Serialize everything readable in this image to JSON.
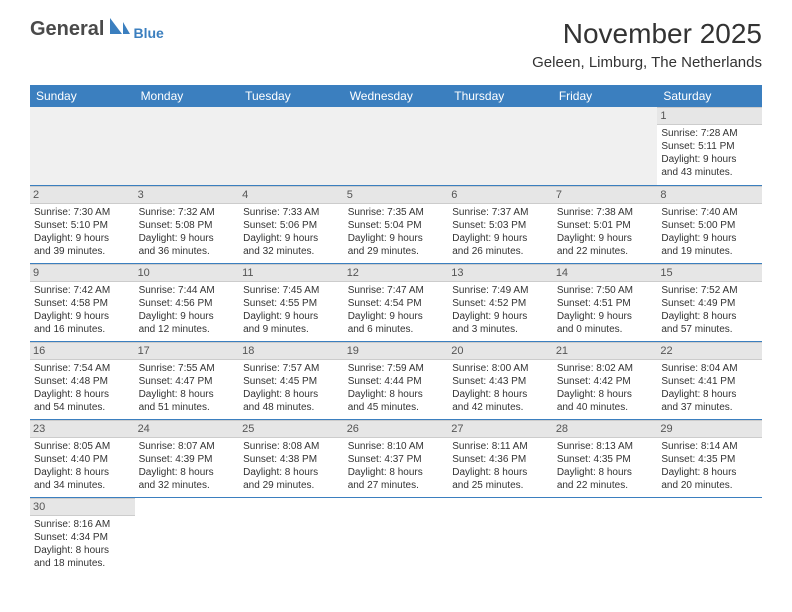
{
  "brand": {
    "main": "General",
    "sub": "Blue"
  },
  "title": "November 2025",
  "location": "Geleen, Limburg, The Netherlands",
  "colors": {
    "header_bg": "#3b7fbf",
    "header_text": "#ffffff",
    "daynum_bg": "#e6e6e6",
    "border": "#3b7fbf",
    "empty_bg": "#f0f0f0"
  },
  "weekdays": [
    "Sunday",
    "Monday",
    "Tuesday",
    "Wednesday",
    "Thursday",
    "Friday",
    "Saturday"
  ],
  "weeks": [
    [
      null,
      null,
      null,
      null,
      null,
      null,
      {
        "n": "1",
        "sr": "Sunrise: 7:28 AM",
        "ss": "Sunset: 5:11 PM",
        "d1": "Daylight: 9 hours",
        "d2": "and 43 minutes."
      }
    ],
    [
      {
        "n": "2",
        "sr": "Sunrise: 7:30 AM",
        "ss": "Sunset: 5:10 PM",
        "d1": "Daylight: 9 hours",
        "d2": "and 39 minutes."
      },
      {
        "n": "3",
        "sr": "Sunrise: 7:32 AM",
        "ss": "Sunset: 5:08 PM",
        "d1": "Daylight: 9 hours",
        "d2": "and 36 minutes."
      },
      {
        "n": "4",
        "sr": "Sunrise: 7:33 AM",
        "ss": "Sunset: 5:06 PM",
        "d1": "Daylight: 9 hours",
        "d2": "and 32 minutes."
      },
      {
        "n": "5",
        "sr": "Sunrise: 7:35 AM",
        "ss": "Sunset: 5:04 PM",
        "d1": "Daylight: 9 hours",
        "d2": "and 29 minutes."
      },
      {
        "n": "6",
        "sr": "Sunrise: 7:37 AM",
        "ss": "Sunset: 5:03 PM",
        "d1": "Daylight: 9 hours",
        "d2": "and 26 minutes."
      },
      {
        "n": "7",
        "sr": "Sunrise: 7:38 AM",
        "ss": "Sunset: 5:01 PM",
        "d1": "Daylight: 9 hours",
        "d2": "and 22 minutes."
      },
      {
        "n": "8",
        "sr": "Sunrise: 7:40 AM",
        "ss": "Sunset: 5:00 PM",
        "d1": "Daylight: 9 hours",
        "d2": "and 19 minutes."
      }
    ],
    [
      {
        "n": "9",
        "sr": "Sunrise: 7:42 AM",
        "ss": "Sunset: 4:58 PM",
        "d1": "Daylight: 9 hours",
        "d2": "and 16 minutes."
      },
      {
        "n": "10",
        "sr": "Sunrise: 7:44 AM",
        "ss": "Sunset: 4:56 PM",
        "d1": "Daylight: 9 hours",
        "d2": "and 12 minutes."
      },
      {
        "n": "11",
        "sr": "Sunrise: 7:45 AM",
        "ss": "Sunset: 4:55 PM",
        "d1": "Daylight: 9 hours",
        "d2": "and 9 minutes."
      },
      {
        "n": "12",
        "sr": "Sunrise: 7:47 AM",
        "ss": "Sunset: 4:54 PM",
        "d1": "Daylight: 9 hours",
        "d2": "and 6 minutes."
      },
      {
        "n": "13",
        "sr": "Sunrise: 7:49 AM",
        "ss": "Sunset: 4:52 PM",
        "d1": "Daylight: 9 hours",
        "d2": "and 3 minutes."
      },
      {
        "n": "14",
        "sr": "Sunrise: 7:50 AM",
        "ss": "Sunset: 4:51 PM",
        "d1": "Daylight: 9 hours",
        "d2": "and 0 minutes."
      },
      {
        "n": "15",
        "sr": "Sunrise: 7:52 AM",
        "ss": "Sunset: 4:49 PM",
        "d1": "Daylight: 8 hours",
        "d2": "and 57 minutes."
      }
    ],
    [
      {
        "n": "16",
        "sr": "Sunrise: 7:54 AM",
        "ss": "Sunset: 4:48 PM",
        "d1": "Daylight: 8 hours",
        "d2": "and 54 minutes."
      },
      {
        "n": "17",
        "sr": "Sunrise: 7:55 AM",
        "ss": "Sunset: 4:47 PM",
        "d1": "Daylight: 8 hours",
        "d2": "and 51 minutes."
      },
      {
        "n": "18",
        "sr": "Sunrise: 7:57 AM",
        "ss": "Sunset: 4:45 PM",
        "d1": "Daylight: 8 hours",
        "d2": "and 48 minutes."
      },
      {
        "n": "19",
        "sr": "Sunrise: 7:59 AM",
        "ss": "Sunset: 4:44 PM",
        "d1": "Daylight: 8 hours",
        "d2": "and 45 minutes."
      },
      {
        "n": "20",
        "sr": "Sunrise: 8:00 AM",
        "ss": "Sunset: 4:43 PM",
        "d1": "Daylight: 8 hours",
        "d2": "and 42 minutes."
      },
      {
        "n": "21",
        "sr": "Sunrise: 8:02 AM",
        "ss": "Sunset: 4:42 PM",
        "d1": "Daylight: 8 hours",
        "d2": "and 40 minutes."
      },
      {
        "n": "22",
        "sr": "Sunrise: 8:04 AM",
        "ss": "Sunset: 4:41 PM",
        "d1": "Daylight: 8 hours",
        "d2": "and 37 minutes."
      }
    ],
    [
      {
        "n": "23",
        "sr": "Sunrise: 8:05 AM",
        "ss": "Sunset: 4:40 PM",
        "d1": "Daylight: 8 hours",
        "d2": "and 34 minutes."
      },
      {
        "n": "24",
        "sr": "Sunrise: 8:07 AM",
        "ss": "Sunset: 4:39 PM",
        "d1": "Daylight: 8 hours",
        "d2": "and 32 minutes."
      },
      {
        "n": "25",
        "sr": "Sunrise: 8:08 AM",
        "ss": "Sunset: 4:38 PM",
        "d1": "Daylight: 8 hours",
        "d2": "and 29 minutes."
      },
      {
        "n": "26",
        "sr": "Sunrise: 8:10 AM",
        "ss": "Sunset: 4:37 PM",
        "d1": "Daylight: 8 hours",
        "d2": "and 27 minutes."
      },
      {
        "n": "27",
        "sr": "Sunrise: 8:11 AM",
        "ss": "Sunset: 4:36 PM",
        "d1": "Daylight: 8 hours",
        "d2": "and 25 minutes."
      },
      {
        "n": "28",
        "sr": "Sunrise: 8:13 AM",
        "ss": "Sunset: 4:35 PM",
        "d1": "Daylight: 8 hours",
        "d2": "and 22 minutes."
      },
      {
        "n": "29",
        "sr": "Sunrise: 8:14 AM",
        "ss": "Sunset: 4:35 PM",
        "d1": "Daylight: 8 hours",
        "d2": "and 20 minutes."
      }
    ],
    [
      {
        "n": "30",
        "sr": "Sunrise: 8:16 AM",
        "ss": "Sunset: 4:34 PM",
        "d1": "Daylight: 8 hours",
        "d2": "and 18 minutes."
      },
      null,
      null,
      null,
      null,
      null,
      null
    ]
  ]
}
